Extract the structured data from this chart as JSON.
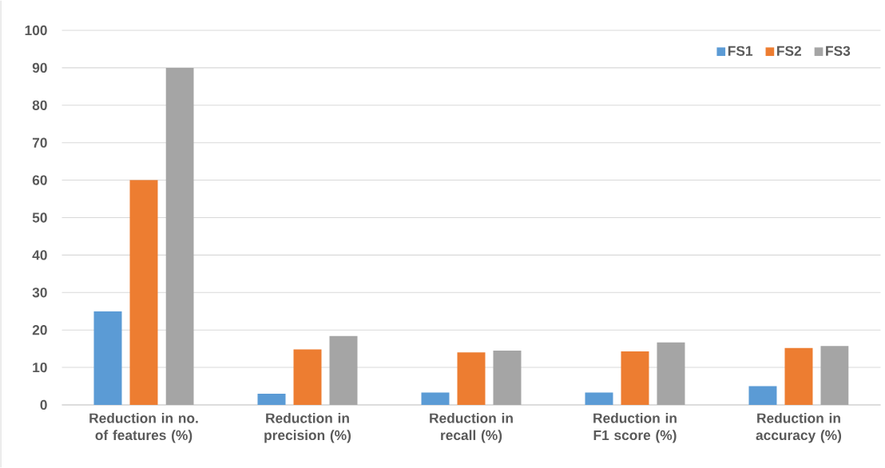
{
  "chart_data": {
    "type": "bar",
    "categories": [
      "Reduction in no. of features (%)",
      "Reduction in precision (%)",
      "Reduction in recall (%)",
      "Reduction in F1 score (%)",
      "Reduction in accuracy (%)"
    ],
    "series": [
      {
        "name": "FS1",
        "color": "#5b9bd5",
        "values": [
          25,
          3,
          3.3,
          3.3,
          5
        ]
      },
      {
        "name": "FS2",
        "color": "#ed7d31",
        "values": [
          60,
          14.8,
          14,
          14.3,
          15.2
        ]
      },
      {
        "name": "FS3",
        "color": "#a5a5a5",
        "values": [
          90,
          18.4,
          14.5,
          16.7,
          15.7
        ]
      }
    ],
    "ylim": [
      0,
      100
    ],
    "yticks": [
      0,
      10,
      20,
      30,
      40,
      50,
      60,
      70,
      80,
      90,
      100
    ],
    "grid": "y",
    "legend": "top right"
  }
}
